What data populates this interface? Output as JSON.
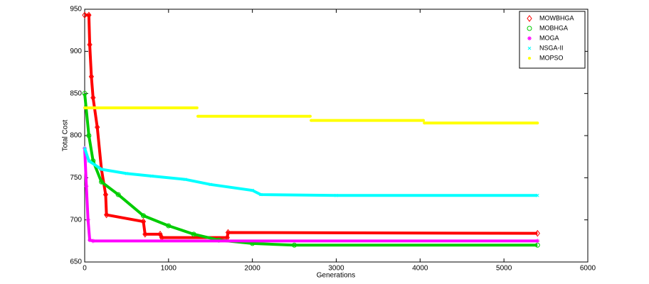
{
  "chart_data": {
    "type": "line",
    "xlabel": "Generations",
    "ylabel": "Total Cost",
    "xlim": [
      0,
      6000
    ],
    "ylim": [
      650,
      950
    ],
    "xticks": [
      0,
      1000,
      2000,
      3000,
      4000,
      5000,
      6000
    ],
    "yticks": [
      650,
      700,
      750,
      800,
      850,
      900,
      950
    ],
    "legend": "upper right",
    "series": [
      {
        "name": "MOWBHGA",
        "color": "#ff0000",
        "marker": "diamond",
        "x": [
          0,
          50,
          60,
          80,
          100,
          150,
          200,
          250,
          260,
          700,
          720,
          900,
          920,
          1700,
          1710,
          5400
        ],
        "values": [
          943,
          943,
          908,
          870,
          845,
          810,
          760,
          730,
          706,
          698,
          683,
          683,
          679,
          679,
          685,
          684
        ]
      },
      {
        "name": "MOBHGA",
        "color": "#00cc00",
        "marker": "circle",
        "x": [
          0,
          50,
          100,
          200,
          400,
          700,
          1000,
          1300,
          1600,
          2000,
          2500,
          5400
        ],
        "values": [
          850,
          800,
          770,
          745,
          730,
          705,
          693,
          683,
          676,
          672,
          670,
          670
        ]
      },
      {
        "name": "MOGA",
        "color": "#ff00ff",
        "marker": "star",
        "x": [
          0,
          20,
          40,
          60,
          100,
          5400
        ],
        "values": [
          785,
          740,
          700,
          676,
          675,
          675
        ]
      },
      {
        "name": "NSGA-II",
        "color": "#00ffff",
        "marker": "x",
        "x": [
          0,
          50,
          200,
          500,
          800,
          1200,
          1500,
          2000,
          2100,
          3000,
          5400
        ],
        "values": [
          785,
          770,
          760,
          755,
          752,
          748,
          742,
          735,
          730,
          729,
          729
        ]
      },
      {
        "name": "MOPSO",
        "color": "#ffff00",
        "marker": "dot",
        "x": [
          0,
          1340,
          1345,
          1350,
          2690,
          2695,
          2700,
          4040,
          4045,
          4050,
          5400
        ],
        "values": [
          833,
          833,
          null,
          823,
          823,
          null,
          818,
          818,
          null,
          815,
          815
        ]
      }
    ]
  }
}
